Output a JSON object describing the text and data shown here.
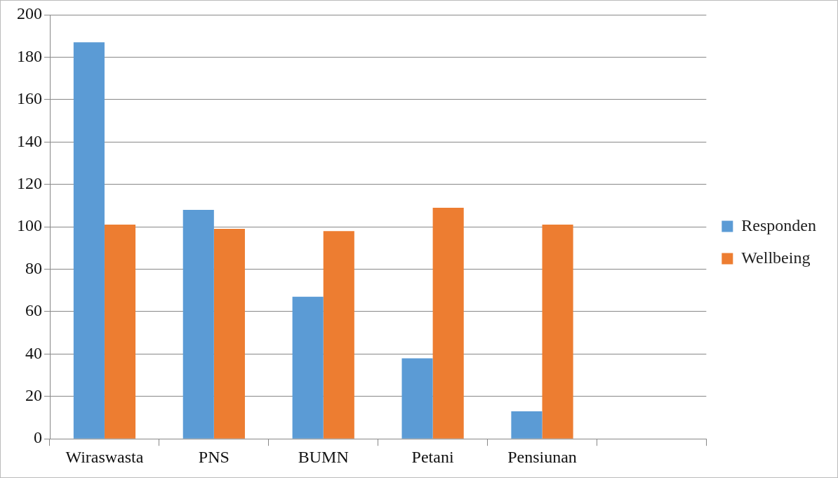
{
  "chart_data": {
    "type": "bar",
    "categories": [
      "Wiraswasta",
      "PNS",
      "BUMN",
      "Petani",
      "Pensiunan",
      null
    ],
    "series": [
      {
        "name": "Responden",
        "color": "#5b9bd5",
        "values": [
          187,
          108,
          67,
          38,
          13,
          null
        ]
      },
      {
        "name": "Wellbeing",
        "color": "#ed7d31",
        "values": [
          101,
          99,
          98,
          109,
          101,
          null
        ]
      }
    ],
    "ylim": [
      0,
      200
    ],
    "yticks": [
      0,
      20,
      40,
      60,
      80,
      100,
      120,
      140,
      160,
      180,
      200
    ],
    "grid": "y",
    "legend": "right"
  }
}
